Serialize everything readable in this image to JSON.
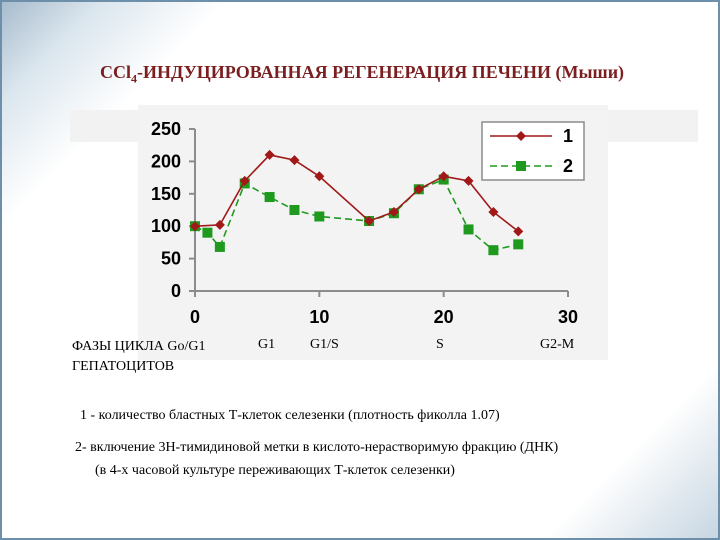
{
  "title": {
    "main": "CCl",
    "subscript": "4",
    "rest": "-ИНДУЦИРОВАННАЯ РЕГЕНЕРАЦИЯ ПЕЧЕНИ (Мыши)"
  },
  "phases": {
    "title_line1": "ФАЗЫ  ЦИКЛА  Go/G1",
    "title_line2": "ГЕПАТОЦИТОВ",
    "labels": [
      "G1",
      "G1/S",
      "S",
      "G2-M"
    ]
  },
  "notes": [
    "1 - количество бластных Т-клеток селезенки (плотность фиколла 1.07)",
    "2- включение 3Н-тимидиновой метки в кислото-нерастворимую фракцию  (ДНК)",
    "(в 4-х  часовой культуре переживающих Т-клеток селезенки)"
  ],
  "colors": {
    "series1": "#a01818",
    "series2": "#1f9a1f",
    "title": "#7a1f1f"
  },
  "chart_data": {
    "type": "line",
    "xlim": [
      0,
      30
    ],
    "ylim": [
      0,
      250
    ],
    "x_ticks": [
      0,
      10,
      20,
      30
    ],
    "y_ticks": [
      0,
      50,
      100,
      150,
      200,
      250
    ],
    "grid": false,
    "legend_position": "top-right",
    "series": [
      {
        "name": "1",
        "style": "solid",
        "marker": "diamond",
        "x": [
          0,
          2,
          4,
          6,
          8,
          10,
          14,
          16,
          18,
          20,
          22,
          24,
          26
        ],
        "y": [
          100,
          102,
          170,
          210,
          202,
          177,
          108,
          122,
          157,
          177,
          170,
          122,
          92
        ]
      },
      {
        "name": "2",
        "style": "dashed",
        "marker": "square",
        "x": [
          0,
          1,
          2,
          4,
          6,
          8,
          10,
          14,
          16,
          18,
          20,
          22,
          24,
          26
        ],
        "y": [
          100,
          90,
          68,
          166,
          145,
          125,
          115,
          108,
          120,
          157,
          172,
          95,
          63,
          72
        ]
      }
    ]
  }
}
